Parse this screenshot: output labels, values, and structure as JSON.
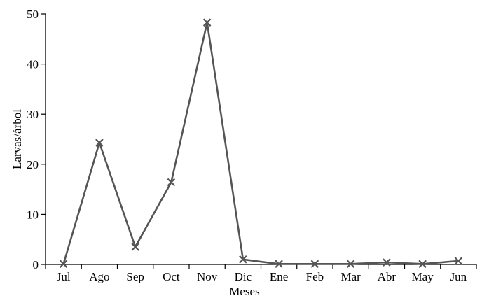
{
  "chart_data": {
    "type": "line",
    "title": "",
    "xlabel": "Meses",
    "ylabel": "Larvas/árbol",
    "categories": [
      "Jul",
      "Ago",
      "Sep",
      "Oct",
      "Nov",
      "Dic",
      "Ene",
      "Feb",
      "Mar",
      "Abr",
      "May",
      "Jun"
    ],
    "series": [
      {
        "values": [
          0.1,
          24.3,
          3.5,
          16.4,
          48.3,
          1.0,
          0.1,
          0.1,
          0.1,
          0.4,
          0.1,
          0.7
        ]
      }
    ],
    "ylim": [
      0,
      50
    ],
    "yticks": [
      0,
      10,
      20,
      30,
      40,
      50
    ],
    "grid": false,
    "marker": "x",
    "line_color": "#555555"
  }
}
